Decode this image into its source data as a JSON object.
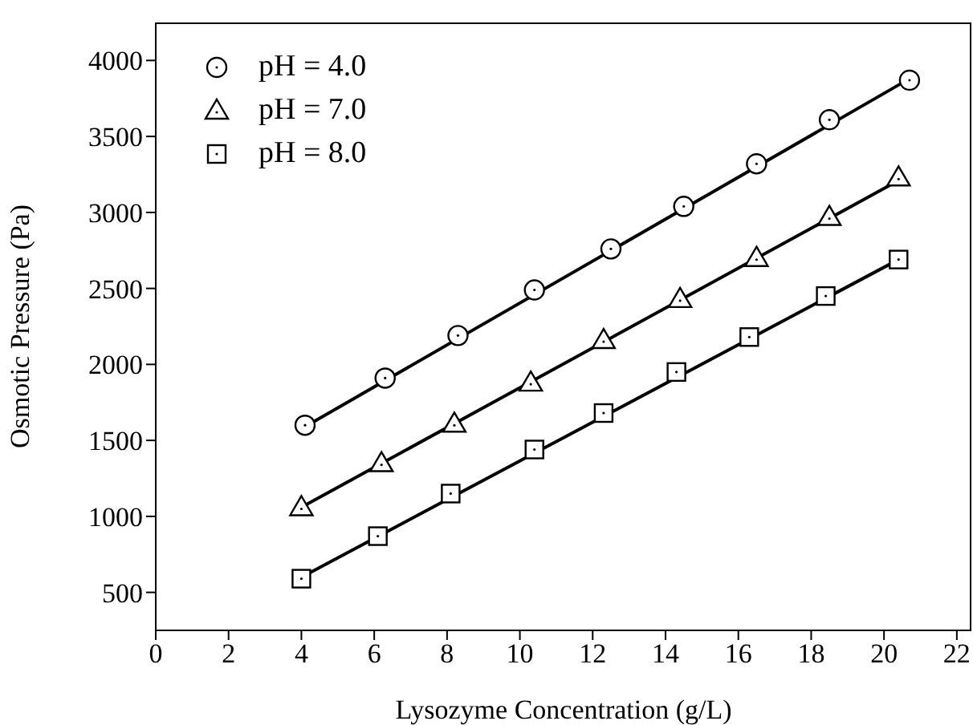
{
  "chart_data": {
    "type": "scatter",
    "xlabel": "Lysozyme Concentration (g/L)",
    "ylabel": "Osmotic Pressure (Pa)",
    "xlim": [
      0,
      22.4
    ],
    "xticks": [
      0,
      2,
      4,
      6,
      8,
      10,
      12,
      14,
      16,
      18,
      20,
      22
    ],
    "ylim": [
      250,
      4250
    ],
    "yticks": [
      500,
      1000,
      1500,
      2000,
      2500,
      3000,
      3500,
      4000
    ],
    "legend": "top left",
    "series": [
      {
        "name": "pH = 4.0",
        "marker": "circle",
        "color": "#000000",
        "x": [
          4.1,
          6.3,
          8.3,
          10.4,
          12.5,
          14.5,
          16.5,
          18.5,
          20.7
        ],
        "values": [
          1600,
          1910,
          2190,
          2490,
          2760,
          3040,
          3320,
          3610,
          3870
        ]
      },
      {
        "name": "pH = 7.0",
        "marker": "triangle",
        "color": "#000000",
        "x": [
          4.0,
          6.2,
          8.2,
          10.3,
          12.3,
          14.4,
          16.5,
          18.5,
          20.4
        ],
        "values": [
          1060,
          1350,
          1610,
          1880,
          2160,
          2430,
          2700,
          2970,
          3230
        ]
      },
      {
        "name": "pH = 8.0",
        "marker": "square",
        "color": "#000000",
        "x": [
          4.0,
          6.1,
          8.1,
          10.4,
          12.3,
          14.3,
          16.3,
          18.4,
          20.4
        ],
        "values": [
          590,
          870,
          1150,
          1440,
          1680,
          1950,
          2180,
          2450,
          2690
        ]
      },
      {
        "type": "line",
        "marker": "none",
        "color": "#000000",
        "x": [
          4.1,
          20.7
        ],
        "values": [
          1590,
          3880
        ]
      },
      {
        "type": "line",
        "marker": "none",
        "color": "#000000",
        "x": [
          4.0,
          20.4
        ],
        "values": [
          1060,
          3210
        ]
      },
      {
        "type": "line",
        "marker": "none",
        "color": "#000000",
        "x": [
          4.0,
          20.4
        ],
        "values": [
          600,
          2690
        ]
      }
    ]
  }
}
